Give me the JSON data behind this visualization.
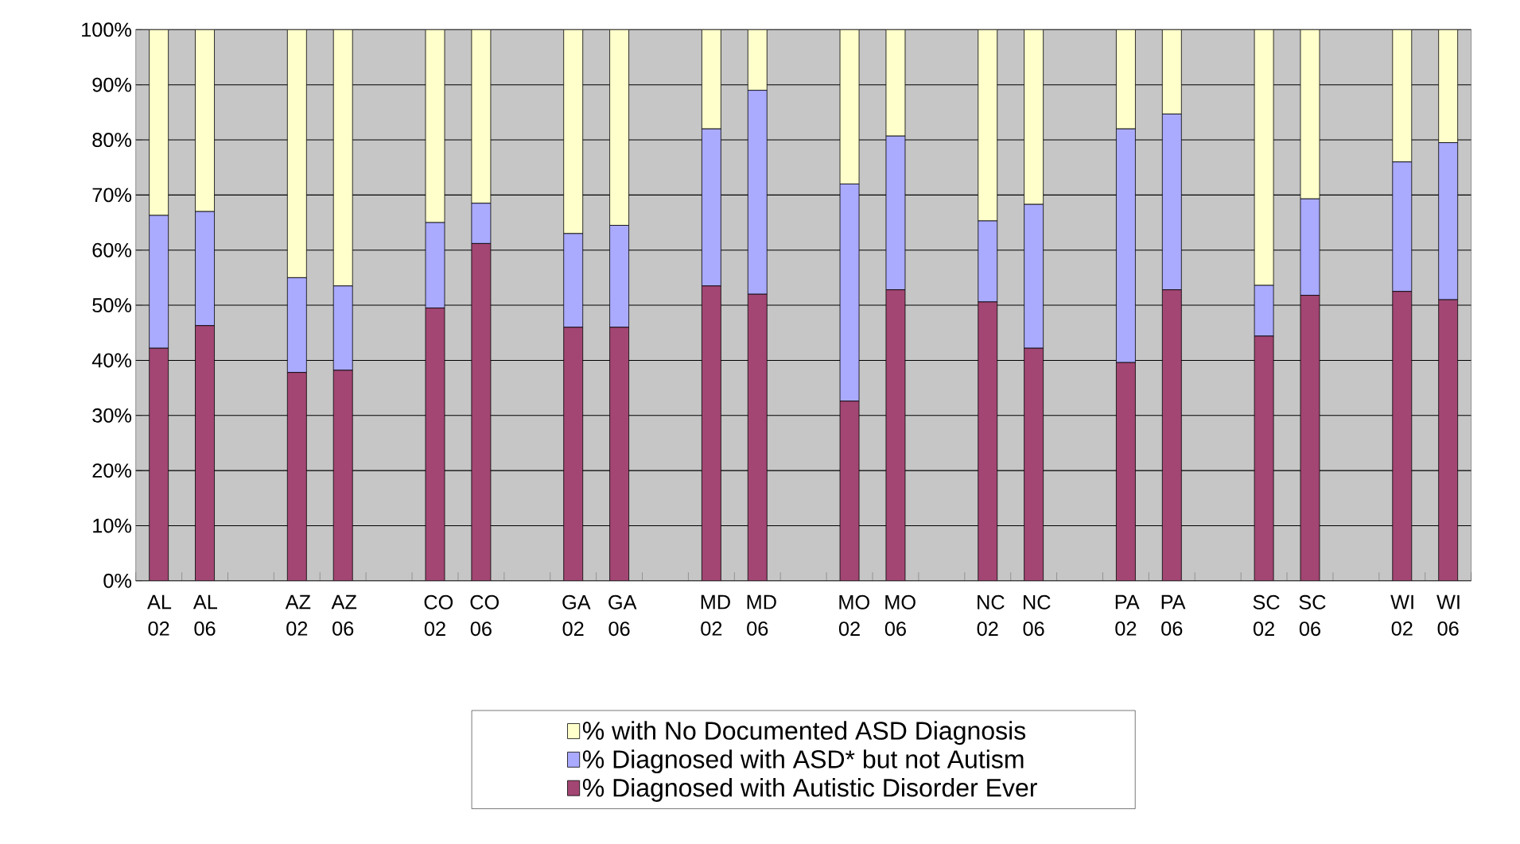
{
  "chart_data": {
    "type": "bar",
    "stacked": true,
    "grid": "y",
    "legend": "bottom",
    "categories": [
      "AL 02",
      "AL 06",
      null,
      "AZ 02",
      "AZ 06",
      null,
      "CO 02",
      "CO 06",
      null,
      "GA 02",
      "GA 06",
      null,
      "MD 02",
      "MD 06",
      null,
      "MO 02",
      "MO 06",
      null,
      "NC 02",
      "NC 06",
      null,
      "PA 02",
      "PA 06",
      null,
      "SC 02",
      "SC 06",
      null,
      "WI 02",
      "WI 06"
    ],
    "ylim": [
      0,
      100
    ],
    "yticks": [
      {
        "value": 0,
        "label": "0%"
      },
      {
        "value": 10,
        "label": "10%"
      },
      {
        "value": 20,
        "label": "20%"
      },
      {
        "value": 30,
        "label": "30%"
      },
      {
        "value": 40,
        "label": "40%"
      },
      {
        "value": 50,
        "label": "50%"
      },
      {
        "value": 60,
        "label": "60%"
      },
      {
        "value": 70,
        "label": "70%"
      },
      {
        "value": 80,
        "label": "80%"
      },
      {
        "value": 90,
        "label": "90%"
      },
      {
        "value": 100,
        "label": "100%"
      }
    ],
    "series": [
      {
        "name": "% Diagnosed with Autistic Disorder Ever",
        "color": "#a34673",
        "values": [
          42.2,
          46.3,
          null,
          37.8,
          38.2,
          null,
          49.5,
          61.2,
          null,
          46,
          46,
          null,
          53.5,
          52,
          null,
          32.6,
          52.8,
          null,
          50.6,
          42.2,
          null,
          39.6,
          52.8,
          null,
          44.4,
          51.8,
          null,
          52.5,
          51
        ]
      },
      {
        "name": "% Diagnosed with ASD* but not Autism",
        "color": "#aaaaff",
        "values": [
          24.1,
          20.7,
          null,
          17.2,
          15.3,
          null,
          15.5,
          7.3,
          null,
          17,
          18.5,
          null,
          28.5,
          37,
          null,
          39.4,
          27.9,
          null,
          14.7,
          26.1,
          null,
          42.4,
          31.9,
          null,
          9.2,
          17.5,
          null,
          23.5,
          28.5
        ]
      },
      {
        "name": "% with No Documented ASD Diagnosis",
        "color": "#ffffcc",
        "values": [
          33.7,
          33,
          null,
          45,
          46.5,
          null,
          35,
          31.5,
          null,
          37,
          35.5,
          null,
          18,
          11,
          null,
          28,
          19.3,
          null,
          34.7,
          31.7,
          null,
          18,
          15.3,
          null,
          46.4,
          30.7,
          null,
          24,
          20.5
        ]
      }
    ]
  }
}
